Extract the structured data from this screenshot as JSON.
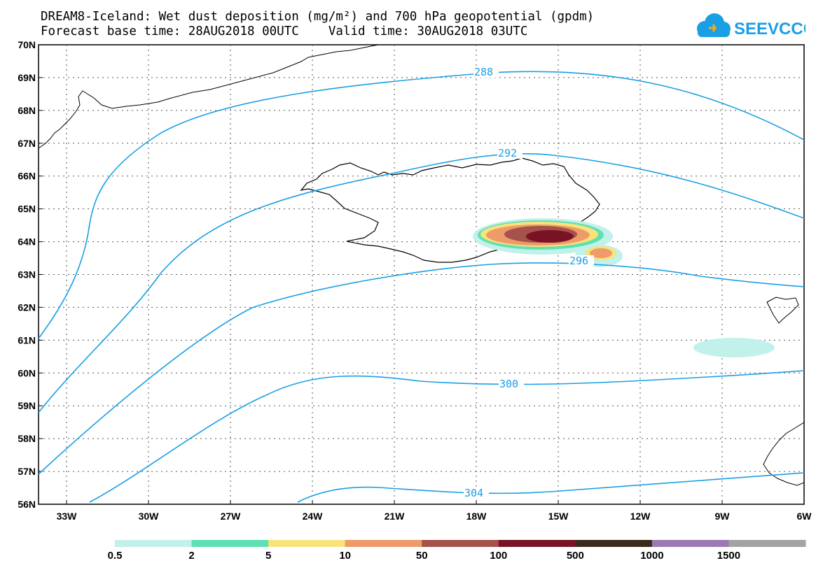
{
  "title_line1": "DREAM8-Iceland: Wet dust deposition (mg/m²) and 700 hPa geopotential (gpdm)",
  "title_line2": "Forecast base time: 28AUG2018 00UTC    Valid time: 30AUG2018 03UTC",
  "logo_text": "SEEVCCC",
  "map": {
    "region": "Iceland and North Atlantic",
    "lat_labels": [
      "70N",
      "69N",
      "68N",
      "67N",
      "66N",
      "65N",
      "64N",
      "63N",
      "62N",
      "61N",
      "60N",
      "59N",
      "58N",
      "57N",
      "56N"
    ],
    "lon_labels": [
      "33W",
      "30W",
      "27W",
      "24W",
      "21W",
      "18W",
      "15W",
      "12W",
      "9W",
      "6W"
    ],
    "grid": "dotted",
    "contour_color": "#1a9fe5",
    "contour_labels": [
      "288",
      "292",
      "296",
      "300",
      "304"
    ]
  },
  "legend": {
    "labels": [
      "0.5",
      "2",
      "5",
      "10",
      "50",
      "100",
      "500",
      "1000",
      "1500"
    ],
    "colors": [
      "#c2f0ea",
      "#5fe0b3",
      "#f8e27a",
      "#ee9a6a",
      "#a5524a",
      "#7a1226",
      "#3b2a1a",
      "#9b7ab1",
      "#a3a3a3"
    ]
  },
  "icons": [
    "cloud-logo-icon"
  ]
}
